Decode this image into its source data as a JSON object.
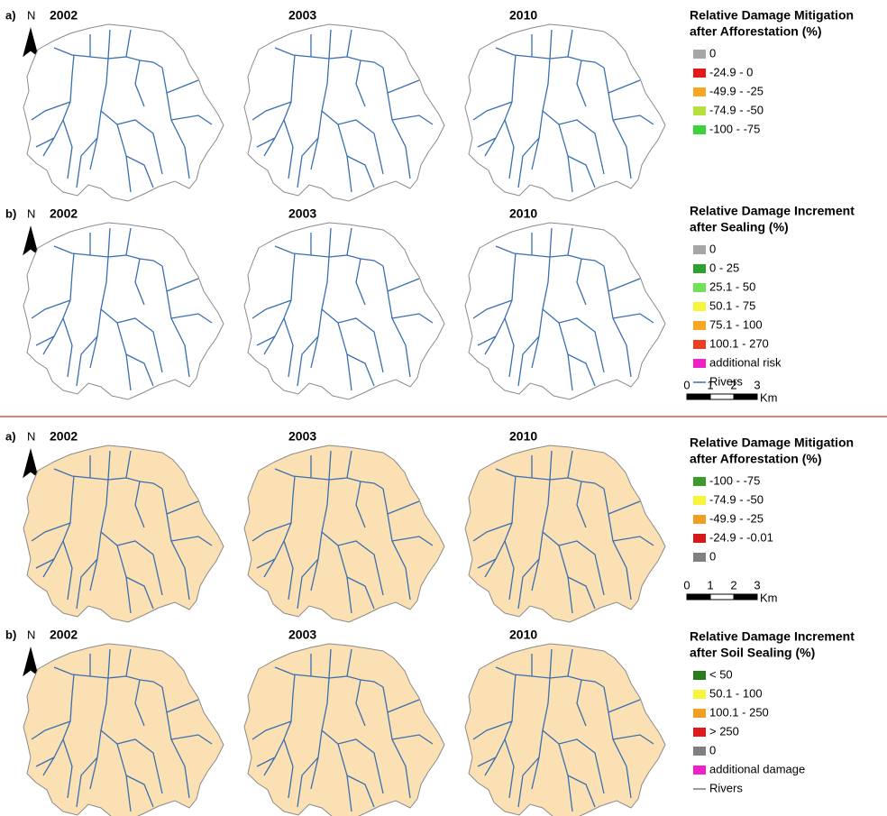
{
  "figures": [
    {
      "panels": [
        {
          "label": "a)",
          "north": "N",
          "years": [
            "2002",
            "2003",
            "2010"
          ],
          "legend": {
            "title": [
              "Relative Damage Mitigation",
              "after Afforestation (%)"
            ],
            "items": [
              {
                "label": "0",
                "color": "#a6a6a6"
              },
              {
                "label": "-24.9 - 0",
                "color": "#e31a1c"
              },
              {
                "label": "-49.9 - -25",
                "color": "#f5a623"
              },
              {
                "label": "-74.9 - -50",
                "color": "#b8e03a"
              },
              {
                "label": "-100 - -75",
                "color": "#3cd23c"
              }
            ]
          }
        },
        {
          "label": "b)",
          "north": "N",
          "years": [
            "2002",
            "2003",
            "2010"
          ],
          "legend": {
            "title": [
              "Relative Damage Increment",
              "after Sealing (%)"
            ],
            "items": [
              {
                "label": "0",
                "color": "#a6a6a6"
              },
              {
                "label": "0 - 25",
                "color": "#2ea02e"
              },
              {
                "label": "25.1 - 50",
                "color": "#6ee05a"
              },
              {
                "label": "50.1 - 75",
                "color": "#f5f53a"
              },
              {
                "label": "75.1 - 100",
                "color": "#f5a623"
              },
              {
                "label": "100.1 - 270",
                "color": "#f03c1e"
              },
              {
                "label": "additional risk",
                "color": "#f020c8"
              }
            ],
            "rivers": "Rivers"
          }
        }
      ],
      "scale": {
        "labels": [
          "0",
          "1",
          "2",
          "3"
        ],
        "unit": "Km"
      }
    },
    {
      "panels": [
        {
          "label": "a)",
          "north": "N",
          "years": [
            "2002",
            "2003",
            "2010"
          ],
          "legend": {
            "title": [
              "Relative Damage Mitigation",
              "after Afforestation (%)"
            ],
            "items": [
              {
                "label": "-100 - -75",
                "color": "#3c9a2a"
              },
              {
                "label": "-74.9 - -50",
                "color": "#f5f53a"
              },
              {
                "label": "-49.9 - -25",
                "color": "#f0a020"
              },
              {
                "label": "-24.9 - -0.01",
                "color": "#d7191c"
              },
              {
                "label": "0",
                "color": "#808080"
              }
            ]
          }
        },
        {
          "label": "b)",
          "north": "N",
          "years": [
            "2002",
            "2003",
            "2010"
          ],
          "legend": {
            "title": [
              "Relative Damage Increment",
              "after Soil Sealing (%)"
            ],
            "items": [
              {
                "label": "< 50",
                "color": "#2a7a1e"
              },
              {
                "label": "50.1 - 100",
                "color": "#f5f53a"
              },
              {
                "label": "100.1 - 250",
                "color": "#f0a020"
              },
              {
                "label": "> 250",
                "color": "#e01a1a"
              },
              {
                "label": "0",
                "color": "#808080"
              },
              {
                "label": "additional damage",
                "color": "#f020c8"
              }
            ],
            "rivers": "Rivers"
          }
        }
      ],
      "scale": {
        "labels": [
          "0",
          "1",
          "2",
          "3"
        ],
        "unit": "Km"
      }
    }
  ]
}
